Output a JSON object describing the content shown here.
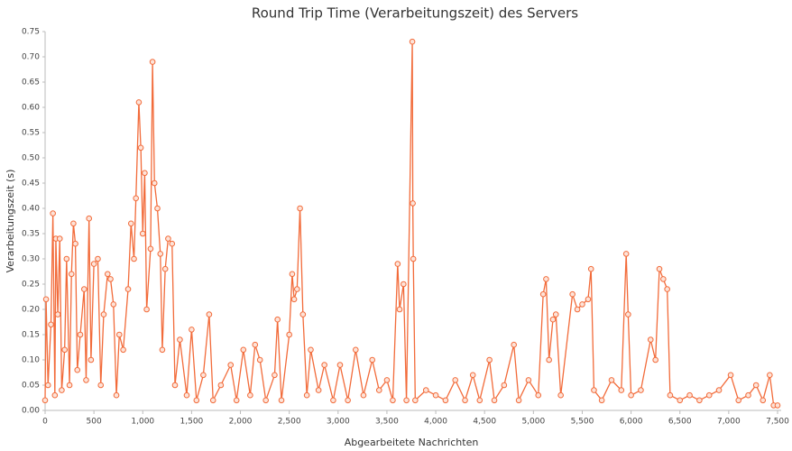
{
  "chart_data": {
    "type": "line",
    "title": "Round Trip Time (Verarbeitungszeit) des Servers",
    "x_label": "Abgearbeitete Nachrichten",
    "y_label": "Verarbeitungszeit (s)",
    "x": [
      0,
      10,
      30,
      60,
      80,
      100,
      110,
      130,
      150,
      170,
      200,
      220,
      250,
      270,
      290,
      310,
      330,
      360,
      400,
      420,
      450,
      470,
      500,
      540,
      570,
      600,
      640,
      670,
      700,
      730,
      760,
      800,
      850,
      880,
      910,
      930,
      960,
      980,
      1000,
      1020,
      1040,
      1080,
      1100,
      1120,
      1150,
      1180,
      1200,
      1230,
      1260,
      1300,
      1330,
      1380,
      1450,
      1500,
      1550,
      1620,
      1680,
      1720,
      1800,
      1900,
      1960,
      2030,
      2100,
      2150,
      2200,
      2260,
      2350,
      2380,
      2420,
      2500,
      2530,
      2550,
      2580,
      2610,
      2640,
      2680,
      2720,
      2800,
      2860,
      2950,
      3020,
      3100,
      3180,
      3260,
      3350,
      3420,
      3500,
      3560,
      3610,
      3630,
      3670,
      3700,
      3760,
      3765,
      3770,
      3790,
      3900,
      4000,
      4100,
      4200,
      4300,
      4380,
      4450,
      4550,
      4600,
      4700,
      4800,
      4850,
      4950,
      5050,
      5100,
      5130,
      5160,
      5200,
      5230,
      5280,
      5400,
      5450,
      5500,
      5560,
      5590,
      5620,
      5700,
      5800,
      5900,
      5950,
      5970,
      6000,
      6100,
      6200,
      6250,
      6290,
      6330,
      6370,
      6400,
      6500,
      6600,
      6700,
      6800,
      6900,
      7020,
      7100,
      7200,
      7280,
      7350,
      7420,
      7460,
      7500
    ],
    "series": [
      {
        "color": "#f26b3a",
        "values": [
          0.02,
          0.22,
          0.05,
          0.17,
          0.39,
          0.03,
          0.34,
          0.19,
          0.34,
          0.04,
          0.12,
          0.3,
          0.05,
          0.27,
          0.37,
          0.33,
          0.08,
          0.15,
          0.24,
          0.06,
          0.38,
          0.1,
          0.29,
          0.3,
          0.05,
          0.19,
          0.27,
          0.26,
          0.21,
          0.03,
          0.15,
          0.12,
          0.24,
          0.37,
          0.3,
          0.42,
          0.61,
          0.52,
          0.35,
          0.47,
          0.2,
          0.32,
          0.69,
          0.45,
          0.4,
          0.31,
          0.12,
          0.28,
          0.34,
          0.33,
          0.05,
          0.14,
          0.03,
          0.16,
          0.02,
          0.07,
          0.19,
          0.02,
          0.05,
          0.09,
          0.02,
          0.12,
          0.03,
          0.13,
          0.1,
          0.02,
          0.07,
          0.18,
          0.02,
          0.15,
          0.27,
          0.22,
          0.24,
          0.4,
          0.19,
          0.03,
          0.12,
          0.04,
          0.09,
          0.02,
          0.09,
          0.02,
          0.12,
          0.03,
          0.1,
          0.04,
          0.06,
          0.02,
          0.29,
          0.2,
          0.25,
          0.02,
          0.73,
          0.41,
          0.3,
          0.02,
          0.04,
          0.03,
          0.02,
          0.06,
          0.02,
          0.07,
          0.02,
          0.1,
          0.02,
          0.05,
          0.13,
          0.02,
          0.06,
          0.03,
          0.23,
          0.26,
          0.1,
          0.18,
          0.19,
          0.03,
          0.23,
          0.2,
          0.21,
          0.22,
          0.28,
          0.04,
          0.02,
          0.06,
          0.04,
          0.31,
          0.19,
          0.03,
          0.04,
          0.14,
          0.1,
          0.28,
          0.26,
          0.24,
          0.03,
          0.02,
          0.03,
          0.02,
          0.03,
          0.04,
          0.07,
          0.02,
          0.03,
          0.05,
          0.02,
          0.07,
          0.01,
          0.01
        ]
      }
    ],
    "xlim": [
      0,
      7500
    ],
    "xticks": [
      0,
      500,
      {
        "value": 1000,
        "label": "1,000"
      },
      {
        "value": 1500,
        "label": "1,500"
      },
      {
        "value": 2000,
        "label": "2,000"
      },
      {
        "value": 2500,
        "label": "2,500"
      },
      {
        "value": 3000,
        "label": "3,000"
      },
      {
        "value": 3500,
        "label": "3,500"
      },
      {
        "value": 4000,
        "label": "4,000"
      },
      {
        "value": 4500,
        "label": "4,500"
      },
      {
        "value": 5000,
        "label": "5,000"
      },
      {
        "value": 5500,
        "label": "5,500"
      },
      {
        "value": 6000,
        "label": "6,000"
      },
      {
        "value": 6500,
        "label": "6,500"
      },
      {
        "value": 7000,
        "label": "7,000"
      },
      {
        "value": 7500,
        "label": "7,500"
      }
    ],
    "ylim": [
      0,
      0.75
    ],
    "yticks": [
      {
        "value": 0,
        "label": "0.00"
      },
      0.05,
      {
        "value": 0.1,
        "label": "0.10"
      },
      0.15,
      {
        "value": 0.2,
        "label": "0.20"
      },
      0.25,
      {
        "value": 0.3,
        "label": "0.30"
      },
      0.35,
      {
        "value": 0.4,
        "label": "0.40"
      },
      0.45,
      {
        "value": 0.5,
        "label": "0.50"
      },
      0.55,
      {
        "value": 0.6,
        "label": "0.60"
      },
      0.65,
      {
        "value": 0.7,
        "label": "0.70"
      },
      0.75
    ],
    "grid": false
  }
}
